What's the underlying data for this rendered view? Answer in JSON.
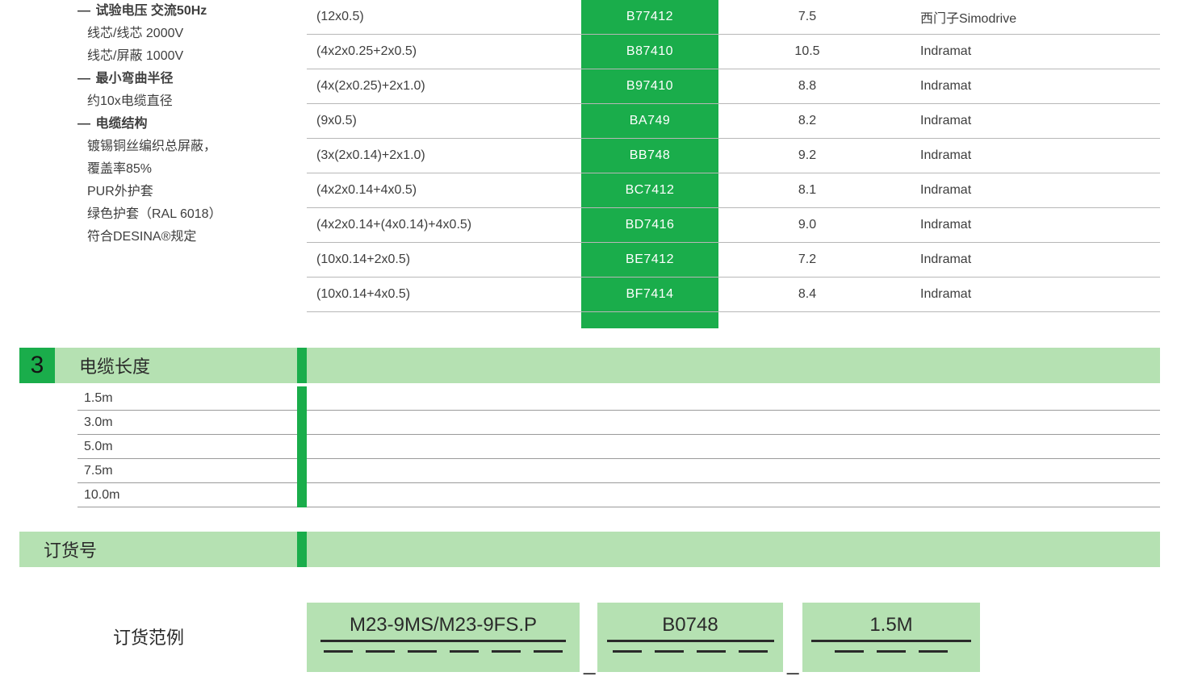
{
  "colors": {
    "brand_green": "#1aad4b",
    "light_green": "#b5e1b2",
    "text": "#3e3e3e",
    "rule": "#9a9a9a",
    "white": "#ffffff"
  },
  "specs": {
    "items": [
      {
        "head": "试验电压",
        "head_tail": "   交流50Hz"
      },
      {
        "sub": "线芯/线芯   2000V"
      },
      {
        "sub": "线芯/屏蔽   1000V"
      },
      {
        "head": "最小弯曲半径",
        "head_tail": ""
      },
      {
        "sub": "约10x电缆直径"
      },
      {
        "head": "电缆结构",
        "head_tail": ""
      },
      {
        "sub": "镀锡铜丝编织总屏蔽，"
      },
      {
        "sub": "覆盖率85%"
      },
      {
        "sub": "PUR外护套"
      },
      {
        "sub": "绿色护套（RAL 6018）"
      },
      {
        "sub": "符合DESINA®规定"
      }
    ]
  },
  "product_table": {
    "rows": [
      {
        "structure": "(12x0.5)",
        "code": "B77412",
        "od": "7.5",
        "compat": "西门子Simodrive"
      },
      {
        "structure": "(4x2x0.25+2x0.5)",
        "code": "B87410",
        "od": "10.5",
        "compat": "Indramat"
      },
      {
        "structure": "(4x(2x0.25)+2x1.0)",
        "code": "B97410",
        "od": "8.8",
        "compat": "Indramat"
      },
      {
        "structure": "(9x0.5)",
        "code": "BA749",
        "od": "8.2",
        "compat": "Indramat"
      },
      {
        "structure": "(3x(2x0.14)+2x1.0)",
        "code": "BB748",
        "od": "9.2",
        "compat": "Indramat"
      },
      {
        "structure": "(4x2x0.14+4x0.5)",
        "code": "BC7412",
        "od": "8.1",
        "compat": "Indramat"
      },
      {
        "structure": "(4x2x0.14+(4x0.14)+4x0.5)",
        "code": "BD7416",
        "od": "9.0",
        "compat": "Indramat"
      },
      {
        "structure": "(10x0.14+2x0.5)",
        "code": "BE7412",
        "od": "7.2",
        "compat": "Indramat"
      },
      {
        "structure": "(10x0.14+4x0.5)",
        "code": "BF7414",
        "od": "8.4",
        "compat": "Indramat"
      }
    ]
  },
  "section3": {
    "number": "3",
    "title": "电缆长度",
    "lengths": [
      "1.5m",
      "3.0m",
      "5.0m",
      "7.5m",
      "10.0m"
    ]
  },
  "section_order": {
    "title": "订货号",
    "example_label": "订货范例",
    "group1": {
      "value": "M23-9MS/M23-9FS.P",
      "dash_count": 6
    },
    "group2": {
      "value": "B0748",
      "dash_count": 4
    },
    "group3": {
      "value": "1.5M",
      "dash_count": 3
    },
    "underscore": "_"
  }
}
